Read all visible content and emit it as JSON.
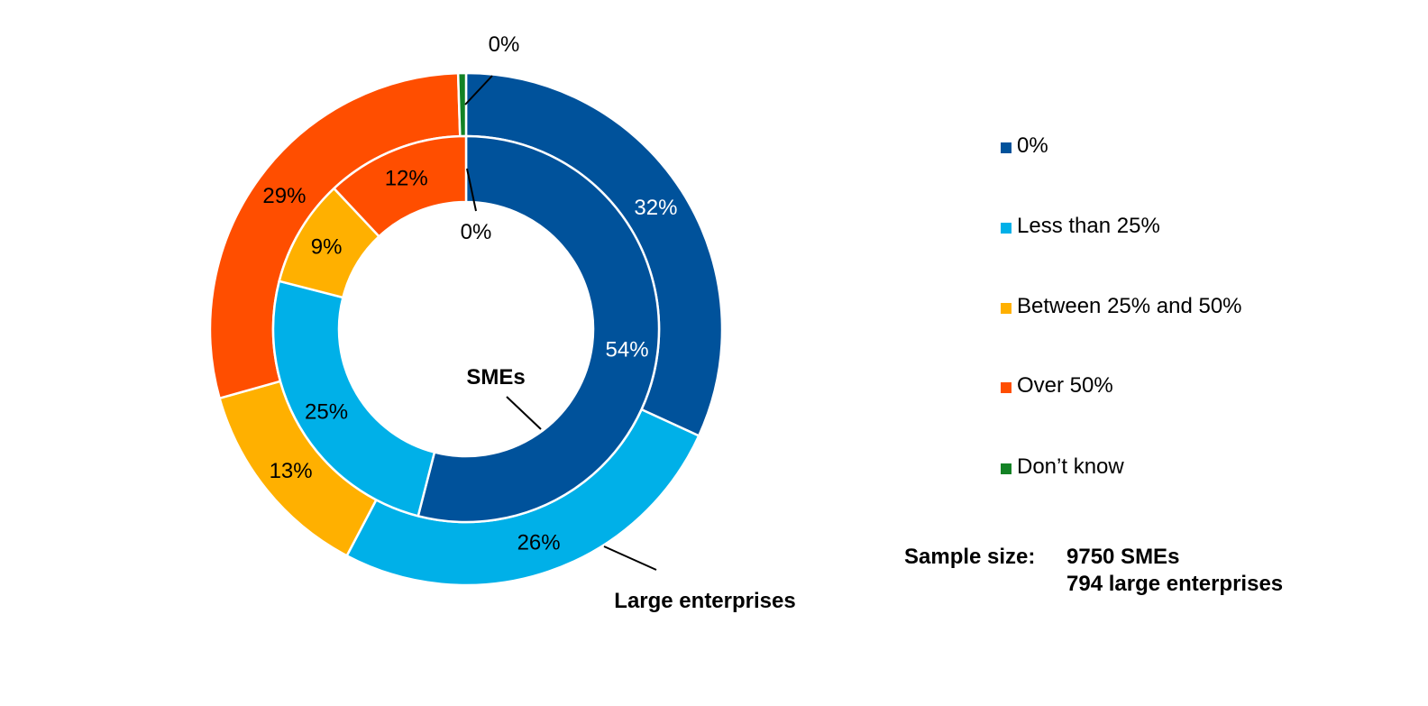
{
  "chart_data": {
    "type": "pie",
    "categories": [
      "0%",
      "Less than 25%",
      "Between 25% and 50%",
      "Over 50%",
      "Don’t know"
    ],
    "colors": [
      "#00529B",
      "#00B0E8",
      "#FFB000",
      "#FF4E00",
      "#138225"
    ],
    "series": [
      {
        "name": "SMEs",
        "values": [
          54,
          25,
          9,
          12,
          0
        ],
        "labels": [
          "54%",
          "25%",
          "9%",
          "12%",
          "0%"
        ]
      },
      {
        "name": "Large enterprises",
        "values": [
          32,
          26,
          13,
          29,
          0.5
        ],
        "labels": [
          "32%",
          "26%",
          "13%",
          "29%",
          "0%"
        ]
      }
    ],
    "legend_position": "right"
  },
  "sample": {
    "label": "Sample size:",
    "line1": "9750 SMEs",
    "line2": "794 large enterprises"
  }
}
